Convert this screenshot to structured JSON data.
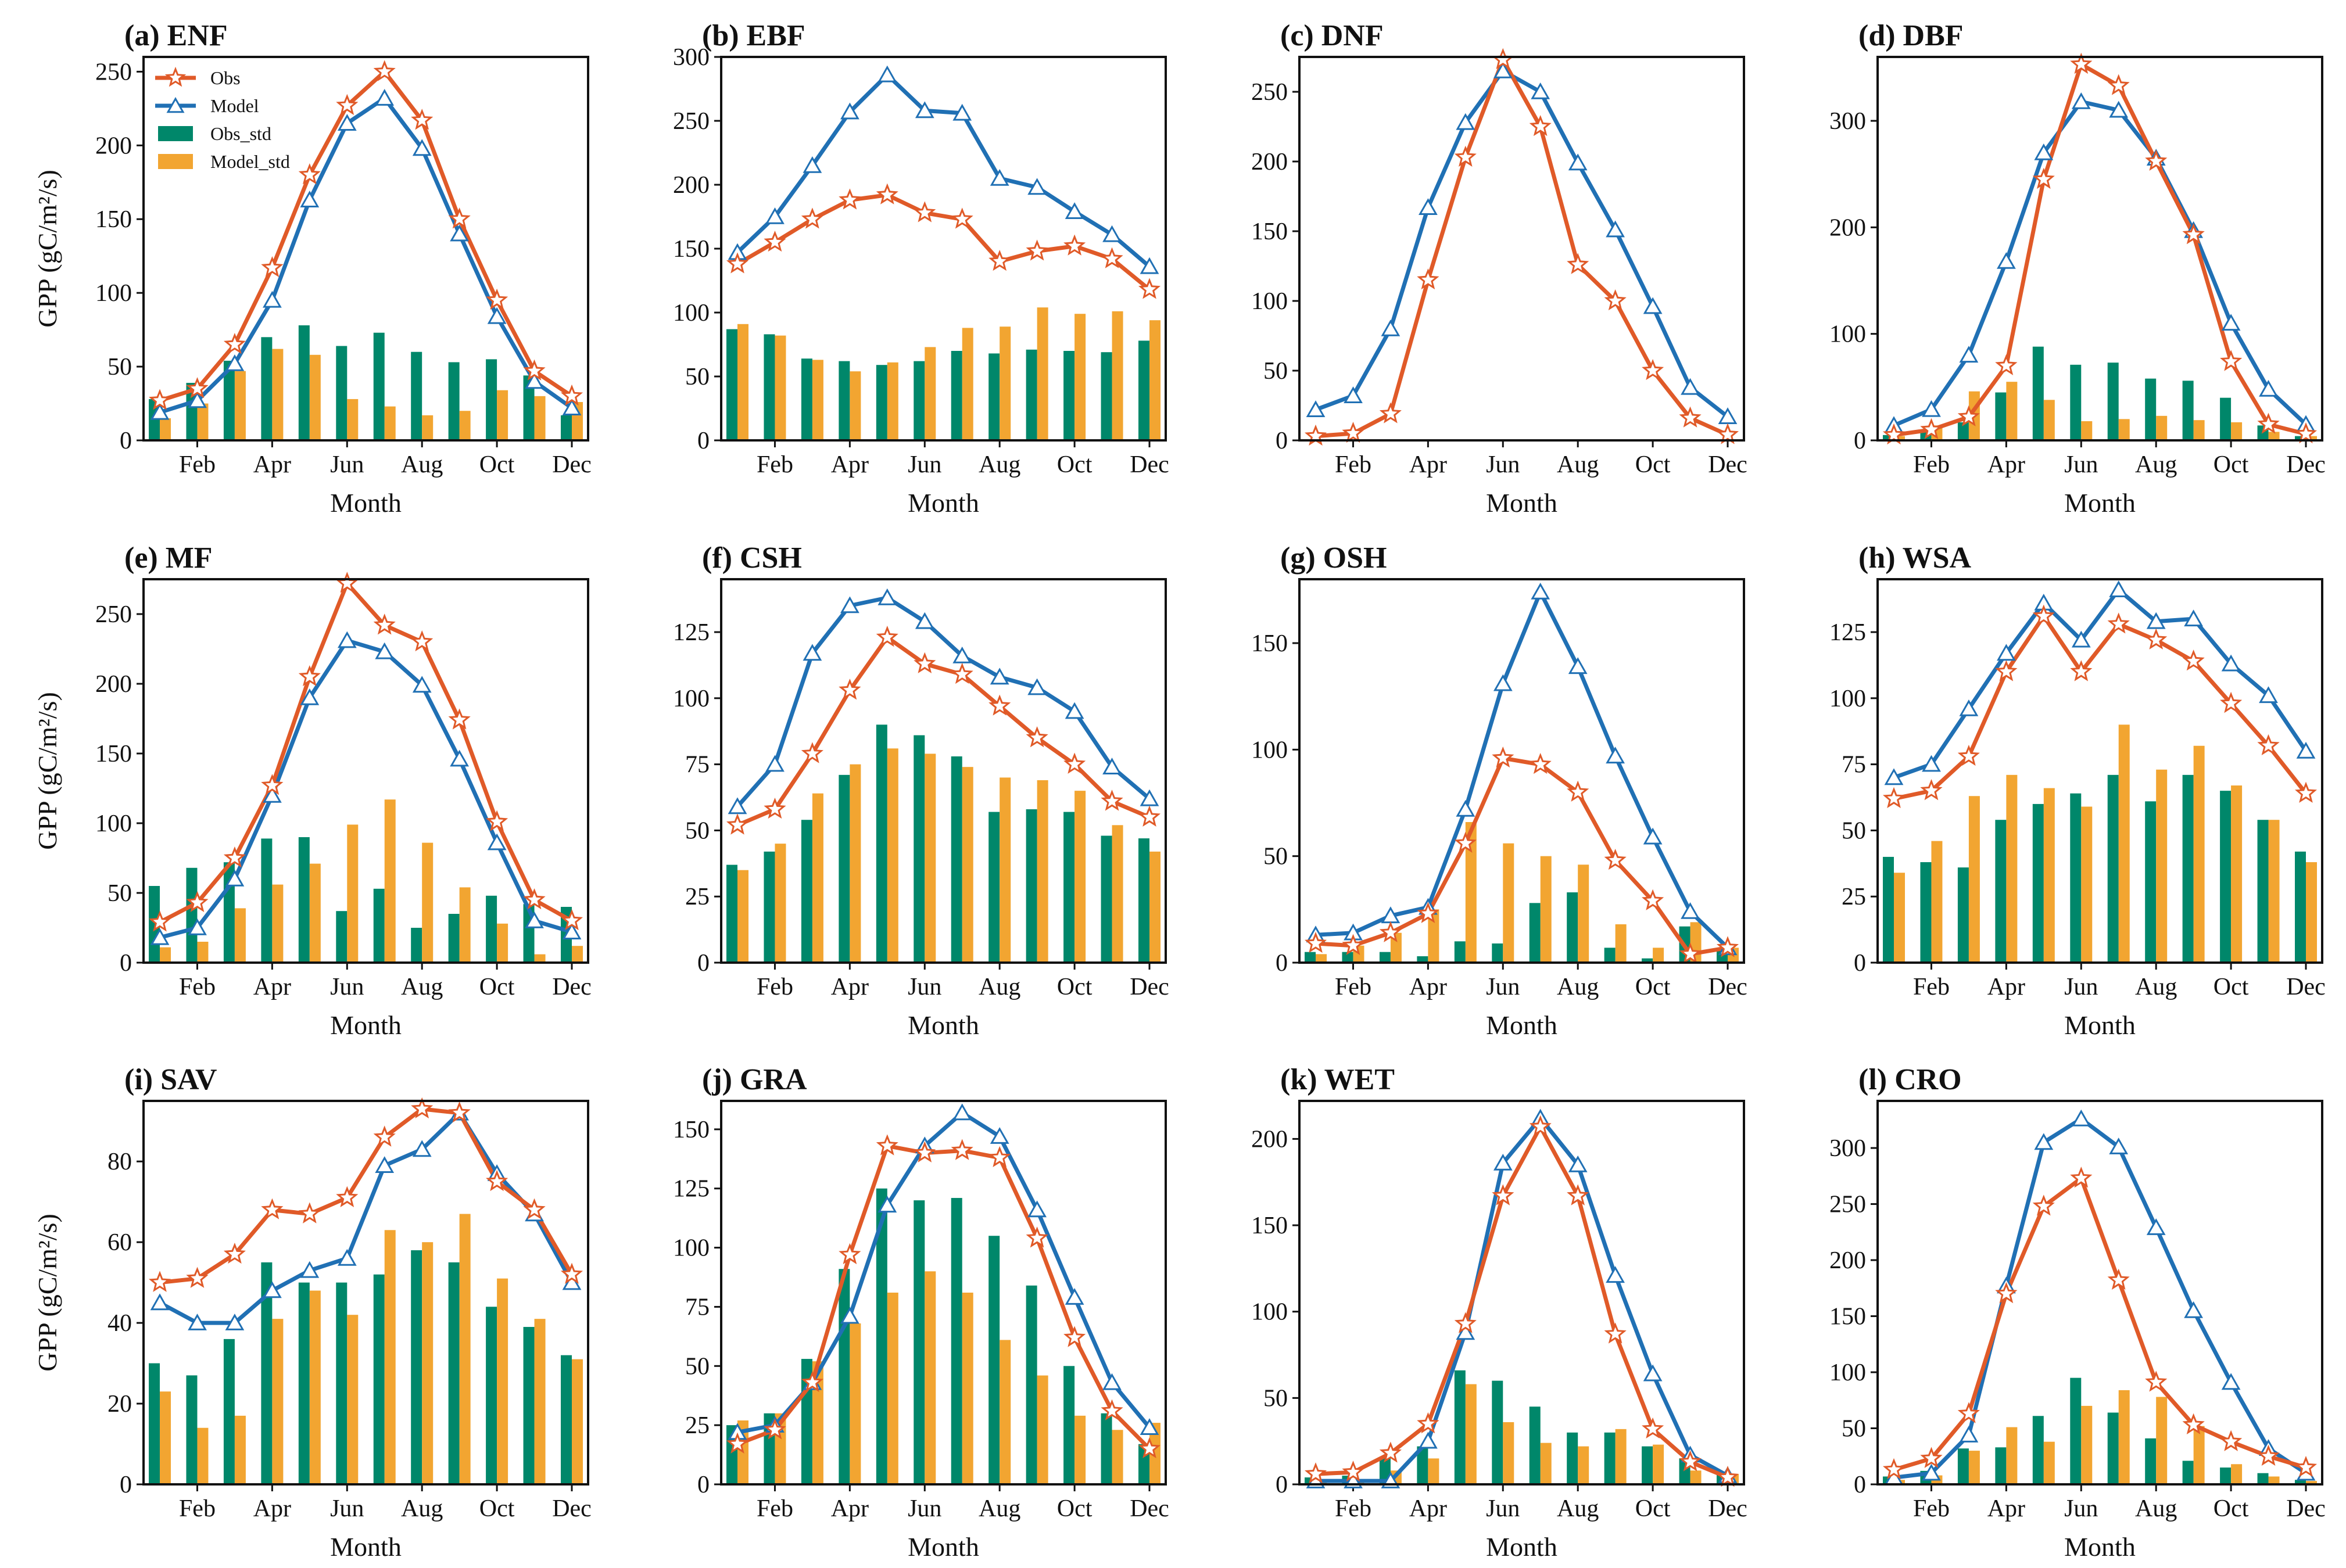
{
  "colors": {
    "obs": "#e05a28",
    "model": "#2070b4",
    "obs_std": "#00876a",
    "model_std": "#f2a531",
    "axis": "#111111"
  },
  "chart_data": [
    {
      "type": "line+bar",
      "title": "(a) ENF",
      "xlabel": "Month",
      "ylabel": "GPP (gC/m²/s)",
      "xticks": [
        "Feb",
        "Apr",
        "Jun",
        "Aug",
        "Oct",
        "Dec"
      ],
      "ylim": [
        0,
        260
      ],
      "yticks": [
        0,
        50,
        100,
        150,
        200,
        250
      ],
      "legend": [
        "Obs",
        "Model",
        "Obs_std",
        "Model_std"
      ],
      "series": [
        {
          "name": "Obs",
          "values": [
            27,
            35,
            65,
            117,
            180,
            227,
            250,
            217,
            150,
            95,
            47,
            30
          ]
        },
        {
          "name": "Model",
          "values": [
            19,
            27,
            52,
            95,
            163,
            215,
            232,
            198,
            140,
            84,
            40,
            22
          ]
        },
        {
          "name": "Obs_std",
          "values": [
            28,
            39,
            54,
            70,
            78,
            64,
            73,
            60,
            53,
            55,
            44,
            17
          ]
        },
        {
          "name": "Model_std",
          "values": [
            15,
            25,
            47,
            62,
            58,
            28,
            23,
            17,
            20,
            34,
            30,
            26
          ]
        }
      ]
    },
    {
      "type": "line+bar",
      "title": "(b) EBF",
      "xlabel": "Month",
      "ylabel": "",
      "xticks": [
        "Feb",
        "Apr",
        "Jun",
        "Aug",
        "Oct",
        "Dec"
      ],
      "ylim": [
        0,
        300
      ],
      "yticks": [
        0,
        50,
        100,
        150,
        200,
        250,
        300
      ],
      "series": [
        {
          "name": "Obs",
          "values": [
            138,
            155,
            173,
            188,
            192,
            178,
            173,
            140,
            148,
            152,
            142,
            118
          ]
        },
        {
          "name": "Model",
          "values": [
            147,
            175,
            215,
            257,
            286,
            258,
            256,
            205,
            198,
            179,
            161,
            136
          ]
        },
        {
          "name": "Obs_std",
          "values": [
            87,
            83,
            64,
            62,
            59,
            62,
            70,
            68,
            71,
            70,
            69,
            78
          ]
        },
        {
          "name": "Model_std",
          "values": [
            91,
            82,
            63,
            54,
            61,
            73,
            88,
            89,
            104,
            99,
            101,
            94
          ]
        }
      ]
    },
    {
      "type": "line+bar",
      "title": "(c) DNF",
      "xlabel": "Month",
      "ylabel": "",
      "xticks": [
        "Feb",
        "Apr",
        "Jun",
        "Aug",
        "Oct",
        "Dec"
      ],
      "ylim": [
        0,
        275
      ],
      "yticks": [
        0,
        50,
        100,
        150,
        200,
        250
      ],
      "series": [
        {
          "name": "Obs",
          "values": [
            3,
            5,
            19,
            115,
            203,
            273,
            225,
            126,
            100,
            50,
            16,
            4
          ]
        },
        {
          "name": "Model",
          "values": [
            22,
            32,
            80,
            167,
            228,
            265,
            250,
            199,
            151,
            96,
            38,
            17
          ]
        },
        {
          "name": "Obs_std",
          "values": [
            0,
            0,
            0,
            0,
            0,
            0,
            0,
            0,
            0,
            0,
            0,
            0
          ]
        },
        {
          "name": "Model_std",
          "values": [
            0,
            0,
            0,
            0,
            0,
            0,
            0,
            0,
            0,
            0,
            0,
            0
          ]
        }
      ]
    },
    {
      "type": "line+bar",
      "title": "(d) DBF",
      "xlabel": "Month",
      "ylabel": "",
      "xticks": [
        "Feb",
        "Apr",
        "Jun",
        "Aug",
        "Oct",
        "Dec"
      ],
      "ylim": [
        0,
        360
      ],
      "yticks": [
        0,
        100,
        200,
        300
      ],
      "series": [
        {
          "name": "Obs",
          "values": [
            5,
            10,
            22,
            70,
            245,
            353,
            333,
            262,
            193,
            74,
            15,
            6
          ]
        },
        {
          "name": "Model",
          "values": [
            14,
            29,
            80,
            168,
            270,
            318,
            310,
            265,
            197,
            110,
            48,
            15
          ]
        },
        {
          "name": "Obs_std",
          "values": [
            5,
            10,
            17,
            45,
            88,
            71,
            73,
            58,
            56,
            40,
            14,
            4
          ]
        },
        {
          "name": "Model_std",
          "values": [
            4,
            14,
            46,
            55,
            38,
            18,
            20,
            23,
            19,
            17,
            8,
            4
          ]
        }
      ]
    },
    {
      "type": "line+bar",
      "title": "(e) MF",
      "xlabel": "Month",
      "ylabel": "GPP (gC/m²/s)",
      "xticks": [
        "Feb",
        "Apr",
        "Jun",
        "Aug",
        "Oct",
        "Dec"
      ],
      "ylim": [
        0,
        275
      ],
      "yticks": [
        0,
        50,
        100,
        150,
        200,
        250
      ],
      "series": [
        {
          "name": "Obs",
          "values": [
            29,
            43,
            75,
            127,
            205,
            272,
            242,
            230,
            174,
            101,
            45,
            30
          ]
        },
        {
          "name": "Model",
          "values": [
            18,
            25,
            60,
            120,
            190,
            231,
            223,
            199,
            146,
            86,
            30,
            22
          ]
        },
        {
          "name": "Obs_std",
          "values": [
            55,
            68,
            72,
            89,
            90,
            37,
            53,
            25,
            35,
            48,
            42,
            40
          ]
        },
        {
          "name": "Model_std",
          "values": [
            11,
            15,
            39,
            56,
            71,
            99,
            117,
            86,
            54,
            28,
            6,
            12
          ]
        }
      ]
    },
    {
      "type": "line+bar",
      "title": "(f) CSH",
      "xlabel": "Month",
      "ylabel": "",
      "xticks": [
        "Feb",
        "Apr",
        "Jun",
        "Aug",
        "Oct",
        "Dec"
      ],
      "ylim": [
        0,
        145
      ],
      "yticks": [
        0,
        25,
        50,
        75,
        100,
        125
      ],
      "series": [
        {
          "name": "Obs",
          "values": [
            52,
            58,
            79,
            103,
            123,
            113,
            109,
            97,
            85,
            75,
            61,
            55
          ]
        },
        {
          "name": "Model",
          "values": [
            59,
            75,
            117,
            135,
            138,
            129,
            116,
            108,
            104,
            95,
            74,
            62
          ]
        },
        {
          "name": "Obs_std",
          "values": [
            37,
            42,
            54,
            71,
            90,
            86,
            78,
            57,
            58,
            57,
            48,
            47
          ]
        },
        {
          "name": "Model_std",
          "values": [
            35,
            45,
            64,
            75,
            81,
            79,
            74,
            70,
            69,
            65,
            52,
            42
          ]
        }
      ]
    },
    {
      "type": "line+bar",
      "title": "(g) OSH",
      "xlabel": "Month",
      "ylabel": "",
      "xticks": [
        "Feb",
        "Apr",
        "Jun",
        "Aug",
        "Oct",
        "Dec"
      ],
      "ylim": [
        0,
        180
      ],
      "yticks": [
        0,
        50,
        100,
        150
      ],
      "series": [
        {
          "name": "Obs",
          "values": [
            9,
            8,
            14,
            23,
            56,
            96,
            93,
            80,
            48,
            29,
            4,
            7
          ]
        },
        {
          "name": "Model",
          "values": [
            13,
            14,
            22,
            26,
            72,
            131,
            174,
            139,
            97,
            59,
            24,
            7
          ]
        },
        {
          "name": "Obs_std",
          "values": [
            5,
            5,
            5,
            3,
            10,
            9,
            28,
            33,
            7,
            2,
            17,
            6
          ]
        },
        {
          "name": "Model_std",
          "values": [
            4,
            8,
            14,
            25,
            66,
            56,
            50,
            46,
            18,
            7,
            19,
            7
          ]
        }
      ]
    },
    {
      "type": "line+bar",
      "title": "(h) WSA",
      "xlabel": "Month",
      "ylabel": "",
      "xticks": [
        "Feb",
        "Apr",
        "Jun",
        "Aug",
        "Oct",
        "Dec"
      ],
      "ylim": [
        0,
        145
      ],
      "yticks": [
        0,
        25,
        50,
        75,
        100,
        125
      ],
      "series": [
        {
          "name": "Obs",
          "values": [
            62,
            65,
            78,
            110,
            131,
            110,
            128,
            122,
            114,
            98,
            82,
            64
          ]
        },
        {
          "name": "Model",
          "values": [
            70,
            75,
            96,
            117,
            136,
            122,
            141,
            129,
            130,
            113,
            101,
            80
          ]
        },
        {
          "name": "Obs_std",
          "values": [
            40,
            38,
            36,
            54,
            60,
            64,
            71,
            61,
            71,
            65,
            54,
            42
          ]
        },
        {
          "name": "Model_std",
          "values": [
            34,
            46,
            63,
            71,
            66,
            59,
            90,
            73,
            82,
            67,
            54,
            38
          ]
        }
      ]
    },
    {
      "type": "line+bar",
      "title": "(i) SAV",
      "xlabel": "Month",
      "ylabel": "GPP (gC/m²/s)",
      "xticks": [
        "Feb",
        "Apr",
        "Jun",
        "Aug",
        "Oct",
        "Dec"
      ],
      "ylim": [
        0,
        95
      ],
      "yticks": [
        0,
        20,
        40,
        60,
        80
      ],
      "series": [
        {
          "name": "Obs",
          "values": [
            50,
            51,
            57,
            68,
            67,
            71,
            86,
            93,
            92,
            75,
            68,
            52
          ]
        },
        {
          "name": "Model",
          "values": [
            45,
            40,
            40,
            48,
            53,
            56,
            79,
            83,
            92,
            77,
            67,
            50
          ]
        },
        {
          "name": "Obs_std",
          "values": [
            30,
            27,
            36,
            55,
            50,
            50,
            52,
            58,
            55,
            44,
            39,
            32
          ]
        },
        {
          "name": "Model_std",
          "values": [
            23,
            14,
            17,
            41,
            48,
            42,
            63,
            60,
            67,
            51,
            41,
            31
          ]
        }
      ]
    },
    {
      "type": "line+bar",
      "title": "(j) GRA",
      "xlabel": "Month",
      "ylabel": "",
      "xticks": [
        "Feb",
        "Apr",
        "Jun",
        "Aug",
        "Oct",
        "Dec"
      ],
      "ylim": [
        0,
        162
      ],
      "yticks": [
        0,
        25,
        50,
        75,
        100,
        125,
        150
      ],
      "series": [
        {
          "name": "Obs",
          "values": [
            17,
            23,
            43,
            97,
            143,
            140,
            141,
            138,
            104,
            62,
            31,
            15
          ]
        },
        {
          "name": "Model",
          "values": [
            22,
            25,
            43,
            71,
            118,
            143,
            157,
            147,
            116,
            79,
            43,
            24
          ]
        },
        {
          "name": "Obs_std",
          "values": [
            25,
            30,
            53,
            91,
            125,
            120,
            121,
            105,
            84,
            50,
            30,
            17
          ]
        },
        {
          "name": "Model_std",
          "values": [
            27,
            30,
            52,
            68,
            81,
            90,
            81,
            61,
            46,
            29,
            23,
            26
          ]
        }
      ]
    },
    {
      "type": "line+bar",
      "title": "(k) WET",
      "xlabel": "Month",
      "ylabel": "",
      "xticks": [
        "Feb",
        "Apr",
        "Jun",
        "Aug",
        "Oct",
        "Dec"
      ],
      "ylim": [
        0,
        222
      ],
      "yticks": [
        0,
        50,
        100,
        150,
        200
      ],
      "series": [
        {
          "name": "Obs",
          "values": [
            6,
            7,
            18,
            35,
            93,
            167,
            207,
            167,
            87,
            32,
            13,
            4
          ]
        },
        {
          "name": "Model",
          "values": [
            2,
            2,
            2,
            25,
            88,
            186,
            212,
            185,
            121,
            64,
            17,
            5
          ]
        },
        {
          "name": "Obs_std",
          "values": [
            4,
            5,
            16,
            22,
            66,
            60,
            45,
            30,
            30,
            22,
            15,
            7
          ]
        },
        {
          "name": "Model_std",
          "values": [
            1,
            3,
            8,
            15,
            58,
            36,
            24,
            22,
            32,
            23,
            8,
            6
          ]
        }
      ]
    },
    {
      "type": "line+bar",
      "title": "(l) CRO",
      "xlabel": "Month",
      "ylabel": "",
      "xticks": [
        "Feb",
        "Apr",
        "Jun",
        "Aug",
        "Oct",
        "Dec"
      ],
      "ylim": [
        0,
        342
      ],
      "yticks": [
        0,
        50,
        100,
        150,
        200,
        250,
        300
      ],
      "series": [
        {
          "name": "Obs",
          "values": [
            13,
            23,
            63,
            170,
            248,
            273,
            182,
            91,
            53,
            38,
            25,
            15
          ]
        },
        {
          "name": "Model",
          "values": [
            6,
            10,
            44,
            177,
            305,
            326,
            301,
            229,
            155,
            91,
            32,
            10
          ]
        },
        {
          "name": "Obs_std",
          "values": [
            7,
            12,
            32,
            33,
            61,
            95,
            64,
            41,
            21,
            15,
            10,
            4
          ]
        },
        {
          "name": "Model_std",
          "values": [
            4,
            8,
            30,
            51,
            38,
            70,
            84,
            78,
            52,
            18,
            7,
            3
          ]
        }
      ]
    }
  ]
}
